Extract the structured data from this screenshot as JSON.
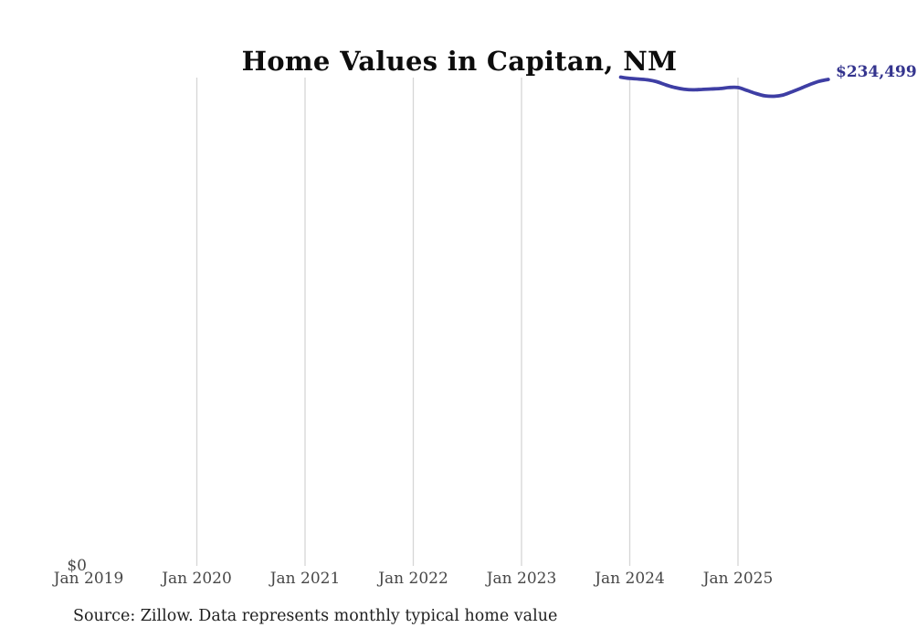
{
  "title": "Home Values in Capitan, NM",
  "source_note": "Source: Zillow. Data represents monthly typical home value",
  "colors": {
    "line": "#3e3ea4",
    "end_label": "#34348e",
    "gridline": "#d6d6d6",
    "tick_label": "#474747",
    "title": "#0d0d0d",
    "source": "#1f1f1f",
    "background": "#ffffff"
  },
  "chart_data": {
    "type": "line",
    "title": "Home Values in Capitan, NM",
    "xlabel": "",
    "ylabel": "",
    "ylim": [
      0,
      235400
    ],
    "grid": "vertical-only",
    "legend": "none",
    "y_axis": {
      "zero_label": "$0"
    },
    "x_axis": {
      "ticks": [
        {
          "label": "Jan 2019",
          "month_index": 0,
          "gridline": false
        },
        {
          "label": "Jan 2020",
          "month_index": 12,
          "gridline": true
        },
        {
          "label": "Jan 2021",
          "month_index": 24,
          "gridline": true
        },
        {
          "label": "Jan 2022",
          "month_index": 36,
          "gridline": true
        },
        {
          "label": "Jan 2023",
          "month_index": 48,
          "gridline": true
        },
        {
          "label": "Jan 2024",
          "month_index": 60,
          "gridline": true
        },
        {
          "label": "Jan 2025",
          "month_index": 72,
          "gridline": true
        }
      ]
    },
    "latest_value_label": "$234,499",
    "series": [
      {
        "name": "Typical home value",
        "unit": "USD",
        "points": [
          {
            "month": "Dec 2023",
            "month_index": 59,
            "value": 235600
          },
          {
            "month": "Jan 2024",
            "month_index": 60,
            "value": 235000
          },
          {
            "month": "Feb 2024",
            "month_index": 61,
            "value": 234700
          },
          {
            "month": "Mar 2024",
            "month_index": 62,
            "value": 234300
          },
          {
            "month": "Apr 2024",
            "month_index": 63,
            "value": 233400
          },
          {
            "month": "May 2024",
            "month_index": 64,
            "value": 231900
          },
          {
            "month": "Jun 2024",
            "month_index": 65,
            "value": 230600
          },
          {
            "month": "Jul 2024",
            "month_index": 66,
            "value": 229800
          },
          {
            "month": "Aug 2024",
            "month_index": 67,
            "value": 229500
          },
          {
            "month": "Sep 2024",
            "month_index": 68,
            "value": 229700
          },
          {
            "month": "Oct 2024",
            "month_index": 69,
            "value": 229900
          },
          {
            "month": "Nov 2024",
            "month_index": 70,
            "value": 230100
          },
          {
            "month": "Dec 2024",
            "month_index": 71,
            "value": 230600
          },
          {
            "month": "Jan 2025",
            "month_index": 72,
            "value": 230600
          },
          {
            "month": "Feb 2025",
            "month_index": 73,
            "value": 229200
          },
          {
            "month": "Mar 2025",
            "month_index": 74,
            "value": 227700
          },
          {
            "month": "Apr 2025",
            "month_index": 75,
            "value": 226600
          },
          {
            "month": "May 2025",
            "month_index": 76,
            "value": 226400
          },
          {
            "month": "Jun 2025",
            "month_index": 77,
            "value": 227000
          },
          {
            "month": "Jul 2025",
            "month_index": 78,
            "value": 228600
          },
          {
            "month": "Aug 2025",
            "month_index": 79,
            "value": 230300
          },
          {
            "month": "Sep 2025",
            "month_index": 80,
            "value": 232100
          },
          {
            "month": "Oct 2025",
            "month_index": 81,
            "value": 233600
          },
          {
            "month": "Nov 2025",
            "month_index": 82,
            "value": 234499
          }
        ]
      }
    ]
  }
}
